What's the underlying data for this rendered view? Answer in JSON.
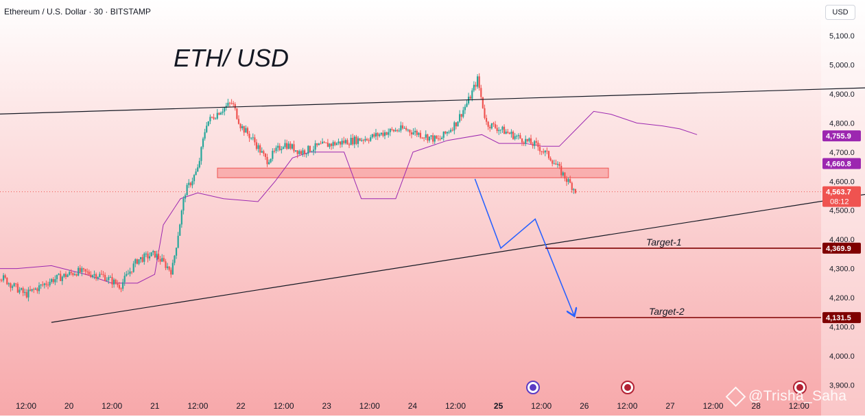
{
  "header": {
    "symbol_title": "Ethereum / U.S. Dollar · 30 · BITSTAMP",
    "currency_button": "USD"
  },
  "watermark": "@Trisha_Saha",
  "colors": {
    "bull": "#26a69a",
    "bear": "#ef5350",
    "ichimoku": "#9c27b0",
    "projection": "#2962ff",
    "target_line": "#7f0000",
    "zone_fill": "#f8a0a0",
    "zone_border": "#ef5350"
  },
  "chart_data": {
    "type": "candlestick",
    "title": "ETH/ USD",
    "symbol": "Ethereum / U.S. Dollar",
    "interval": "30",
    "exchange": "BITSTAMP",
    "ylim": [
      3880,
      5150
    ],
    "y_ticks": [
      "5,100.0",
      "5,000.0",
      "4,900.0",
      "4,800.0",
      "4,700.0",
      "4,600.0",
      "4,500.0",
      "4,400.0",
      "4,300.0",
      "4,200.0",
      "4,100.0",
      "4,000.0",
      "3,900.0"
    ],
    "x_ticks": [
      "12:00",
      "20",
      "12:00",
      "21",
      "12:00",
      "22",
      "12:00",
      "23",
      "12:00",
      "24",
      "12:00",
      "25",
      "12:00",
      "26",
      "12:00",
      "27",
      "12:00",
      "28",
      "12:00"
    ],
    "current_price": {
      "label": "4,563.7",
      "value": 4563.7,
      "countdown": "08:12"
    },
    "indicator_labels": [
      {
        "label": "4,755.9",
        "value": 4755.9
      },
      {
        "label": "4,660.8",
        "value": 4660.8
      }
    ],
    "resistance_zone": {
      "low": 4612,
      "high": 4645
    },
    "targets": [
      {
        "name": "Target-1",
        "label": "4,369.9",
        "value": 4369.9
      },
      {
        "name": "Target-2",
        "label": "4,131.5",
        "value": 4131.5
      }
    ],
    "wedge_upper": [
      [
        0,
        4830
      ],
      [
        14,
        4955
      ],
      [
        14.9,
        5070
      ]
    ],
    "wedge_lower": [
      [
        0.4,
        4115
      ],
      [
        11.0,
        4608
      ],
      [
        14.5,
        4903
      ]
    ],
    "projection_path": [
      [
        11.0,
        4608
      ],
      [
        11.3,
        4370
      ],
      [
        11.7,
        4470
      ],
      [
        12.15,
        4140
      ]
    ],
    "price_path": [
      [
        -5.0,
        4260
      ],
      [
        -4.7,
        4310
      ],
      [
        -4.5,
        4250
      ],
      [
        -4.3,
        4180
      ],
      [
        -4.1,
        4160
      ],
      [
        -3.9,
        4090
      ],
      [
        -3.6,
        4140
      ],
      [
        -3.3,
        4200
      ],
      [
        -3.0,
        4220
      ],
      [
        -2.7,
        4150
      ],
      [
        -2.4,
        4320
      ],
      [
        -2.2,
        4355
      ],
      [
        -2.0,
        4330
      ],
      [
        -1.7,
        4310
      ],
      [
        -1.4,
        4290
      ],
      [
        -1.1,
        4240
      ],
      [
        -0.8,
        4275
      ],
      [
        -0.5,
        4210
      ],
      [
        -0.2,
        4260
      ],
      [
        0.1,
        4290
      ],
      [
        0.4,
        4275
      ],
      [
        0.6,
        4240
      ],
      [
        0.8,
        4330
      ],
      [
        1.0,
        4350
      ],
      [
        1.2,
        4290
      ],
      [
        1.35,
        4560
      ],
      [
        1.5,
        4640
      ],
      [
        1.6,
        4800
      ],
      [
        1.75,
        4840
      ],
      [
        1.9,
        4870
      ],
      [
        2.0,
        4790
      ],
      [
        2.15,
        4740
      ],
      [
        2.3,
        4670
      ],
      [
        2.5,
        4730
      ],
      [
        2.7,
        4700
      ],
      [
        2.9,
        4720
      ],
      [
        3.1,
        4730
      ],
      [
        3.3,
        4740
      ],
      [
        3.5,
        4750
      ],
      [
        3.7,
        4770
      ],
      [
        3.9,
        4780
      ],
      [
        4.1,
        4760
      ],
      [
        4.3,
        4740
      ],
      [
        4.5,
        4800
      ],
      [
        4.65,
        4880
      ],
      [
        4.75,
        4950
      ],
      [
        4.85,
        4800
      ],
      [
        5.0,
        4780
      ],
      [
        5.15,
        4760
      ],
      [
        5.3,
        4740
      ],
      [
        5.45,
        4720
      ],
      [
        5.6,
        4680
      ],
      [
        5.7,
        4640
      ],
      [
        5.8,
        4600
      ],
      [
        5.9,
        4565
      ]
    ],
    "ichimoku_span": [
      [
        -5.0,
        4390
      ],
      [
        -4.6,
        4360
      ],
      [
        -4.2,
        4320
      ],
      [
        -3.8,
        4300
      ],
      [
        -3.4,
        4260
      ],
      [
        -3.0,
        4280
      ],
      [
        -2.6,
        4300
      ],
      [
        -2.2,
        4270
      ],
      [
        -1.8,
        4300
      ],
      [
        -1.4,
        4320
      ],
      [
        -1.0,
        4300
      ],
      [
        -0.6,
        4300
      ],
      [
        -0.2,
        4310
      ],
      [
        0.2,
        4280
      ],
      [
        0.5,
        4250
      ],
      [
        0.8,
        4250
      ],
      [
        1.0,
        4280
      ],
      [
        1.1,
        4450
      ],
      [
        1.3,
        4540
      ],
      [
        1.5,
        4560
      ],
      [
        1.8,
        4540
      ],
      [
        2.2,
        4530
      ],
      [
        2.4,
        4600
      ],
      [
        2.6,
        4680
      ],
      [
        2.8,
        4700
      ],
      [
        3.2,
        4700
      ],
      [
        3.4,
        4540
      ],
      [
        3.8,
        4540
      ],
      [
        4.0,
        4700
      ],
      [
        4.4,
        4740
      ],
      [
        4.8,
        4760
      ],
      [
        5.0,
        4730
      ],
      [
        5.3,
        4730
      ],
      [
        5.5,
        4720
      ],
      [
        5.7,
        4720
      ],
      [
        5.9,
        4780
      ],
      [
        6.1,
        4840
      ],
      [
        6.3,
        4830
      ],
      [
        6.6,
        4800
      ],
      [
        6.9,
        4790
      ],
      [
        7.1,
        4780
      ],
      [
        7.3,
        4760
      ]
    ]
  }
}
